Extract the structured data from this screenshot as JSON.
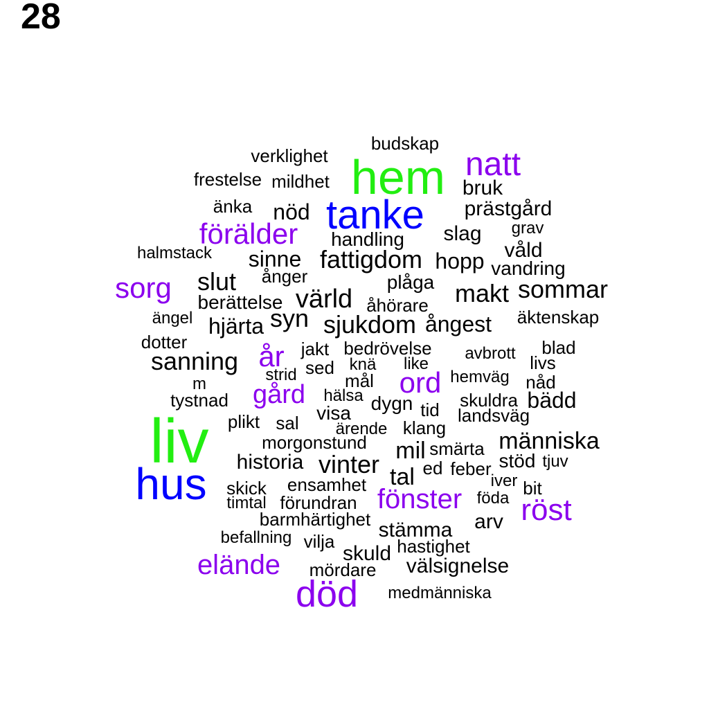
{
  "page_number": "28",
  "colors": {
    "black": "#000000",
    "purple": "#8b00ee",
    "blue": "#0000ff",
    "green": "#22ee11"
  },
  "words": [
    {
      "text": "budskap",
      "color": "black"
    },
    {
      "text": "verklighet",
      "color": "black"
    },
    {
      "text": "hem",
      "color": "green"
    },
    {
      "text": "natt",
      "color": "purple"
    },
    {
      "text": "frestelse",
      "color": "black"
    },
    {
      "text": "mildhet",
      "color": "black"
    },
    {
      "text": "bruk",
      "color": "black"
    },
    {
      "text": "änka",
      "color": "black"
    },
    {
      "text": "nöd",
      "color": "black"
    },
    {
      "text": "tanke",
      "color": "blue"
    },
    {
      "text": "prästgård",
      "color": "black"
    },
    {
      "text": "grav",
      "color": "black"
    },
    {
      "text": "förälder",
      "color": "purple"
    },
    {
      "text": "slag",
      "color": "black"
    },
    {
      "text": "handling",
      "color": "black"
    },
    {
      "text": "halmstack",
      "color": "black"
    },
    {
      "text": "våld",
      "color": "black"
    },
    {
      "text": "sinne",
      "color": "black"
    },
    {
      "text": "fattigdom",
      "color": "black"
    },
    {
      "text": "hopp",
      "color": "black"
    },
    {
      "text": "vandring",
      "color": "black"
    },
    {
      "text": "ånger",
      "color": "black"
    },
    {
      "text": "slut",
      "color": "black"
    },
    {
      "text": "sorg",
      "color": "purple"
    },
    {
      "text": "plåga",
      "color": "black"
    },
    {
      "text": "makt",
      "color": "black"
    },
    {
      "text": "sommar",
      "color": "black"
    },
    {
      "text": "berättelse",
      "color": "black"
    },
    {
      "text": "värld",
      "color": "black"
    },
    {
      "text": "åhörare",
      "color": "black"
    },
    {
      "text": "ängel",
      "color": "black"
    },
    {
      "text": "syn",
      "color": "black"
    },
    {
      "text": "äktenskap",
      "color": "black"
    },
    {
      "text": "hjärta",
      "color": "black"
    },
    {
      "text": "sjukdom",
      "color": "black"
    },
    {
      "text": "ångest",
      "color": "black"
    },
    {
      "text": "dotter",
      "color": "black"
    },
    {
      "text": "jakt",
      "color": "black"
    },
    {
      "text": "bedrövelse",
      "color": "black"
    },
    {
      "text": "blad",
      "color": "black"
    },
    {
      "text": "avbrott",
      "color": "black"
    },
    {
      "text": "år",
      "color": "purple"
    },
    {
      "text": "sanning",
      "color": "black"
    },
    {
      "text": "livs",
      "color": "black"
    },
    {
      "text": "knä",
      "color": "black"
    },
    {
      "text": "like",
      "color": "black"
    },
    {
      "text": "sed",
      "color": "black"
    },
    {
      "text": "strid",
      "color": "black"
    },
    {
      "text": "ord",
      "color": "purple"
    },
    {
      "text": "hemväg",
      "color": "black"
    },
    {
      "text": "nåd",
      "color": "black"
    },
    {
      "text": "mål",
      "color": "black"
    },
    {
      "text": "m",
      "color": "black"
    },
    {
      "text": "gård",
      "color": "purple"
    },
    {
      "text": "hälsa",
      "color": "black"
    },
    {
      "text": "tystnad",
      "color": "black"
    },
    {
      "text": "dygn",
      "color": "black"
    },
    {
      "text": "skuldra",
      "color": "black"
    },
    {
      "text": "bädd",
      "color": "black"
    },
    {
      "text": "tid",
      "color": "black"
    },
    {
      "text": "visa",
      "color": "black"
    },
    {
      "text": "landsväg",
      "color": "black"
    },
    {
      "text": "plikt",
      "color": "black"
    },
    {
      "text": "sal",
      "color": "black"
    },
    {
      "text": "ärende",
      "color": "black"
    },
    {
      "text": "klang",
      "color": "black"
    },
    {
      "text": "liv",
      "color": "green"
    },
    {
      "text": "människa",
      "color": "black"
    },
    {
      "text": "morgonstund",
      "color": "black"
    },
    {
      "text": "mil",
      "color": "black"
    },
    {
      "text": "smärta",
      "color": "black"
    },
    {
      "text": "historia",
      "color": "black"
    },
    {
      "text": "vinter",
      "color": "black"
    },
    {
      "text": "stöd",
      "color": "black"
    },
    {
      "text": "tjuv",
      "color": "black"
    },
    {
      "text": "ed",
      "color": "black"
    },
    {
      "text": "feber",
      "color": "black"
    },
    {
      "text": "tal",
      "color": "black"
    },
    {
      "text": "hus",
      "color": "blue"
    },
    {
      "text": "iver",
      "color": "black"
    },
    {
      "text": "skick",
      "color": "black"
    },
    {
      "text": "ensamhet",
      "color": "black"
    },
    {
      "text": "bit",
      "color": "black"
    },
    {
      "text": "fönster",
      "color": "purple"
    },
    {
      "text": "föda",
      "color": "black"
    },
    {
      "text": "timtal",
      "color": "black"
    },
    {
      "text": "förundran",
      "color": "black"
    },
    {
      "text": "röst",
      "color": "purple"
    },
    {
      "text": "barmhärtighet",
      "color": "black"
    },
    {
      "text": "arv",
      "color": "black"
    },
    {
      "text": "stämma",
      "color": "black"
    },
    {
      "text": "befallning",
      "color": "black"
    },
    {
      "text": "vilja",
      "color": "black"
    },
    {
      "text": "hastighet",
      "color": "black"
    },
    {
      "text": "skuld",
      "color": "black"
    },
    {
      "text": "elände",
      "color": "purple"
    },
    {
      "text": "välsignelse",
      "color": "black"
    },
    {
      "text": "mördare",
      "color": "black"
    },
    {
      "text": "död",
      "color": "purple"
    },
    {
      "text": "medmänniska",
      "color": "black"
    }
  ]
}
